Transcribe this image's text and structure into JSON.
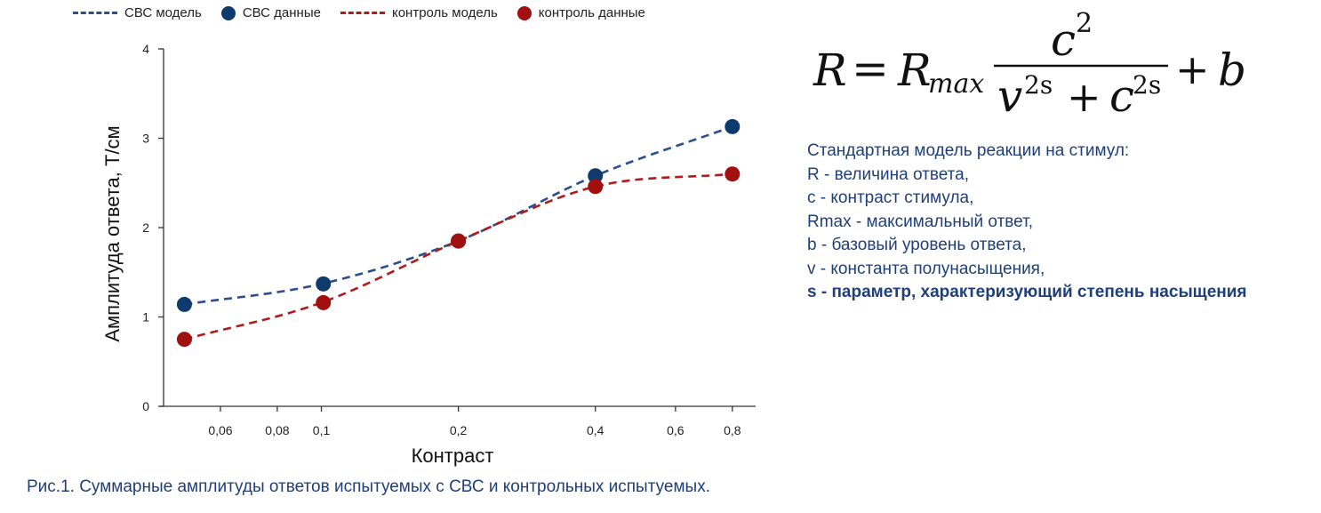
{
  "legend": {
    "items": [
      {
        "label": "СВС модель",
        "kind": "dash",
        "color": "#2b4e8c"
      },
      {
        "label": "СВС данные",
        "kind": "dot",
        "color": "#0e3a6e"
      },
      {
        "label": "контроль модель",
        "kind": "dash",
        "color": "#b01c1c"
      },
      {
        "label": "контроль данные",
        "kind": "dot",
        "color": "#a10f0f"
      }
    ]
  },
  "chart_data": {
    "type": "scatter",
    "xlabel": "Контраст",
    "ylabel": "Амплитуда ответа, Т/см",
    "x_scale": "log",
    "xlim": [
      0.045,
      0.9
    ],
    "ylim": [
      0,
      4
    ],
    "x_ticks": [
      0.06,
      0.08,
      0.1,
      0.2,
      0.4,
      0.6,
      0.8
    ],
    "x_tick_labels": [
      "0,06",
      "0,08",
      "0,1",
      "0,2",
      "0,4",
      "0,6",
      "0,8"
    ],
    "y_ticks": [
      0,
      1,
      2,
      3,
      4
    ],
    "y_tick_labels": [
      "0",
      "1",
      "2",
      "3",
      "4"
    ],
    "grid": false,
    "legend_position": "top",
    "series": [
      {
        "name": "СВС данные",
        "kind": "points",
        "color": "#0e3a6e",
        "x": [
          0.05,
          0.101,
          0.2,
          0.4,
          0.8
        ],
        "y": [
          1.14,
          1.37,
          1.85,
          2.58,
          3.13
        ]
      },
      {
        "name": "контроль данные",
        "kind": "points",
        "color": "#a10f0f",
        "x": [
          0.05,
          0.101,
          0.2,
          0.4,
          0.8
        ],
        "y": [
          0.75,
          1.16,
          1.85,
          2.46,
          2.6
        ]
      },
      {
        "name": "СВС модель",
        "kind": "curve",
        "color": "#2b4e8c",
        "x": [
          0.05,
          0.1,
          0.2,
          0.4,
          0.8
        ],
        "y": [
          1.14,
          1.37,
          1.85,
          2.58,
          3.13
        ]
      },
      {
        "name": "контроль модель",
        "kind": "curve",
        "color": "#b01c1c",
        "x": [
          0.05,
          0.1,
          0.2,
          0.4,
          0.8
        ],
        "y": [
          0.75,
          1.16,
          1.85,
          2.46,
          2.6
        ]
      }
    ]
  },
  "formula": {
    "lhs": "R",
    "eq": "=",
    "rmax_base": "R",
    "rmax_sub": "max",
    "num_base": "c",
    "num_exp": "2",
    "den_v": "v",
    "den_v_exp": "2s",
    "den_plus": "+",
    "den_c": "c",
    "den_c_exp": "2s",
    "tail_plus": "+",
    "tail_b": "b"
  },
  "description": {
    "lines": [
      "Стандартная модель реакции на стимул:",
      "R - величина ответа,",
      "c - контраст стимула,",
      "Rmax - максимальный ответ,",
      "b - базовый уровень ответа,",
      "v - константа полунасыщения,"
    ],
    "bold_line": "s - параметр, характеризующий степень насыщения"
  },
  "caption": "Рис.1. Суммарные амплитуды ответов испытуемых с СВС и контрольных испытуемых."
}
